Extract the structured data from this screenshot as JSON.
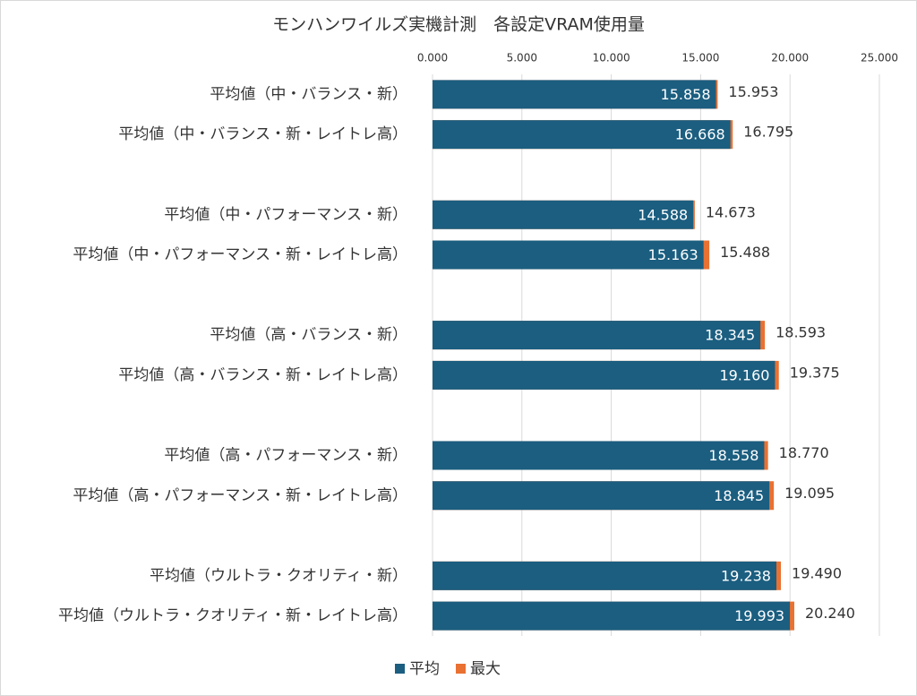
{
  "chart_data": {
    "type": "bar",
    "orientation": "horizontal",
    "overlap": true,
    "title": "モンハンワイルズ実機計測　各設定VRAM使用量",
    "categories": [
      "平均値（中・バランス・新）",
      "平均値（中・バランス・新・レイトレ高）",
      "平均値（中・パフォーマンス・新）",
      "平均値（中・パフォーマンス・新・レイトレ高）",
      "平均値（高・バランス・新）",
      "平均値（高・バランス・新・レイトレ高）",
      "平均値（高・パフォーマンス・新）",
      "平均値（高・パフォーマンス・新・レイトレ高）",
      "平均値（ウルトラ・クオリティ・新）",
      "平均値（ウルトラ・クオリティ・新・レイトレ高）"
    ],
    "series": [
      {
        "name": "最大",
        "color": "#e97132",
        "values": [
          15.953,
          16.795,
          14.673,
          15.488,
          18.593,
          19.375,
          18.77,
          19.095,
          19.49,
          20.24
        ],
        "value_labels": [
          "15.953",
          "16.795",
          "14.673",
          "15.488",
          "18.593",
          "19.375",
          "18.770",
          "19.095",
          "19.490",
          "20.240"
        ]
      },
      {
        "name": "平均",
        "color": "#1b5e80",
        "values": [
          15.858,
          16.668,
          14.588,
          15.163,
          18.345,
          19.16,
          18.558,
          18.845,
          19.238,
          19.993
        ],
        "value_labels": [
          "15.858",
          "16.668",
          "14.588",
          "15.163",
          "18.345",
          "19.160",
          "18.558",
          "18.845",
          "19.238",
          "19.993"
        ]
      }
    ],
    "xlim": [
      0,
      25
    ],
    "xticks": [
      {
        "value": 0,
        "label": "0.000"
      },
      {
        "value": 5,
        "label": "5.000"
      },
      {
        "value": 10,
        "label": "10.000"
      },
      {
        "value": 15,
        "label": "15.000"
      },
      {
        "value": 20,
        "label": "20.000"
      },
      {
        "value": 25,
        "label": "25.000"
      }
    ],
    "grid": true,
    "legend": "bottom"
  }
}
